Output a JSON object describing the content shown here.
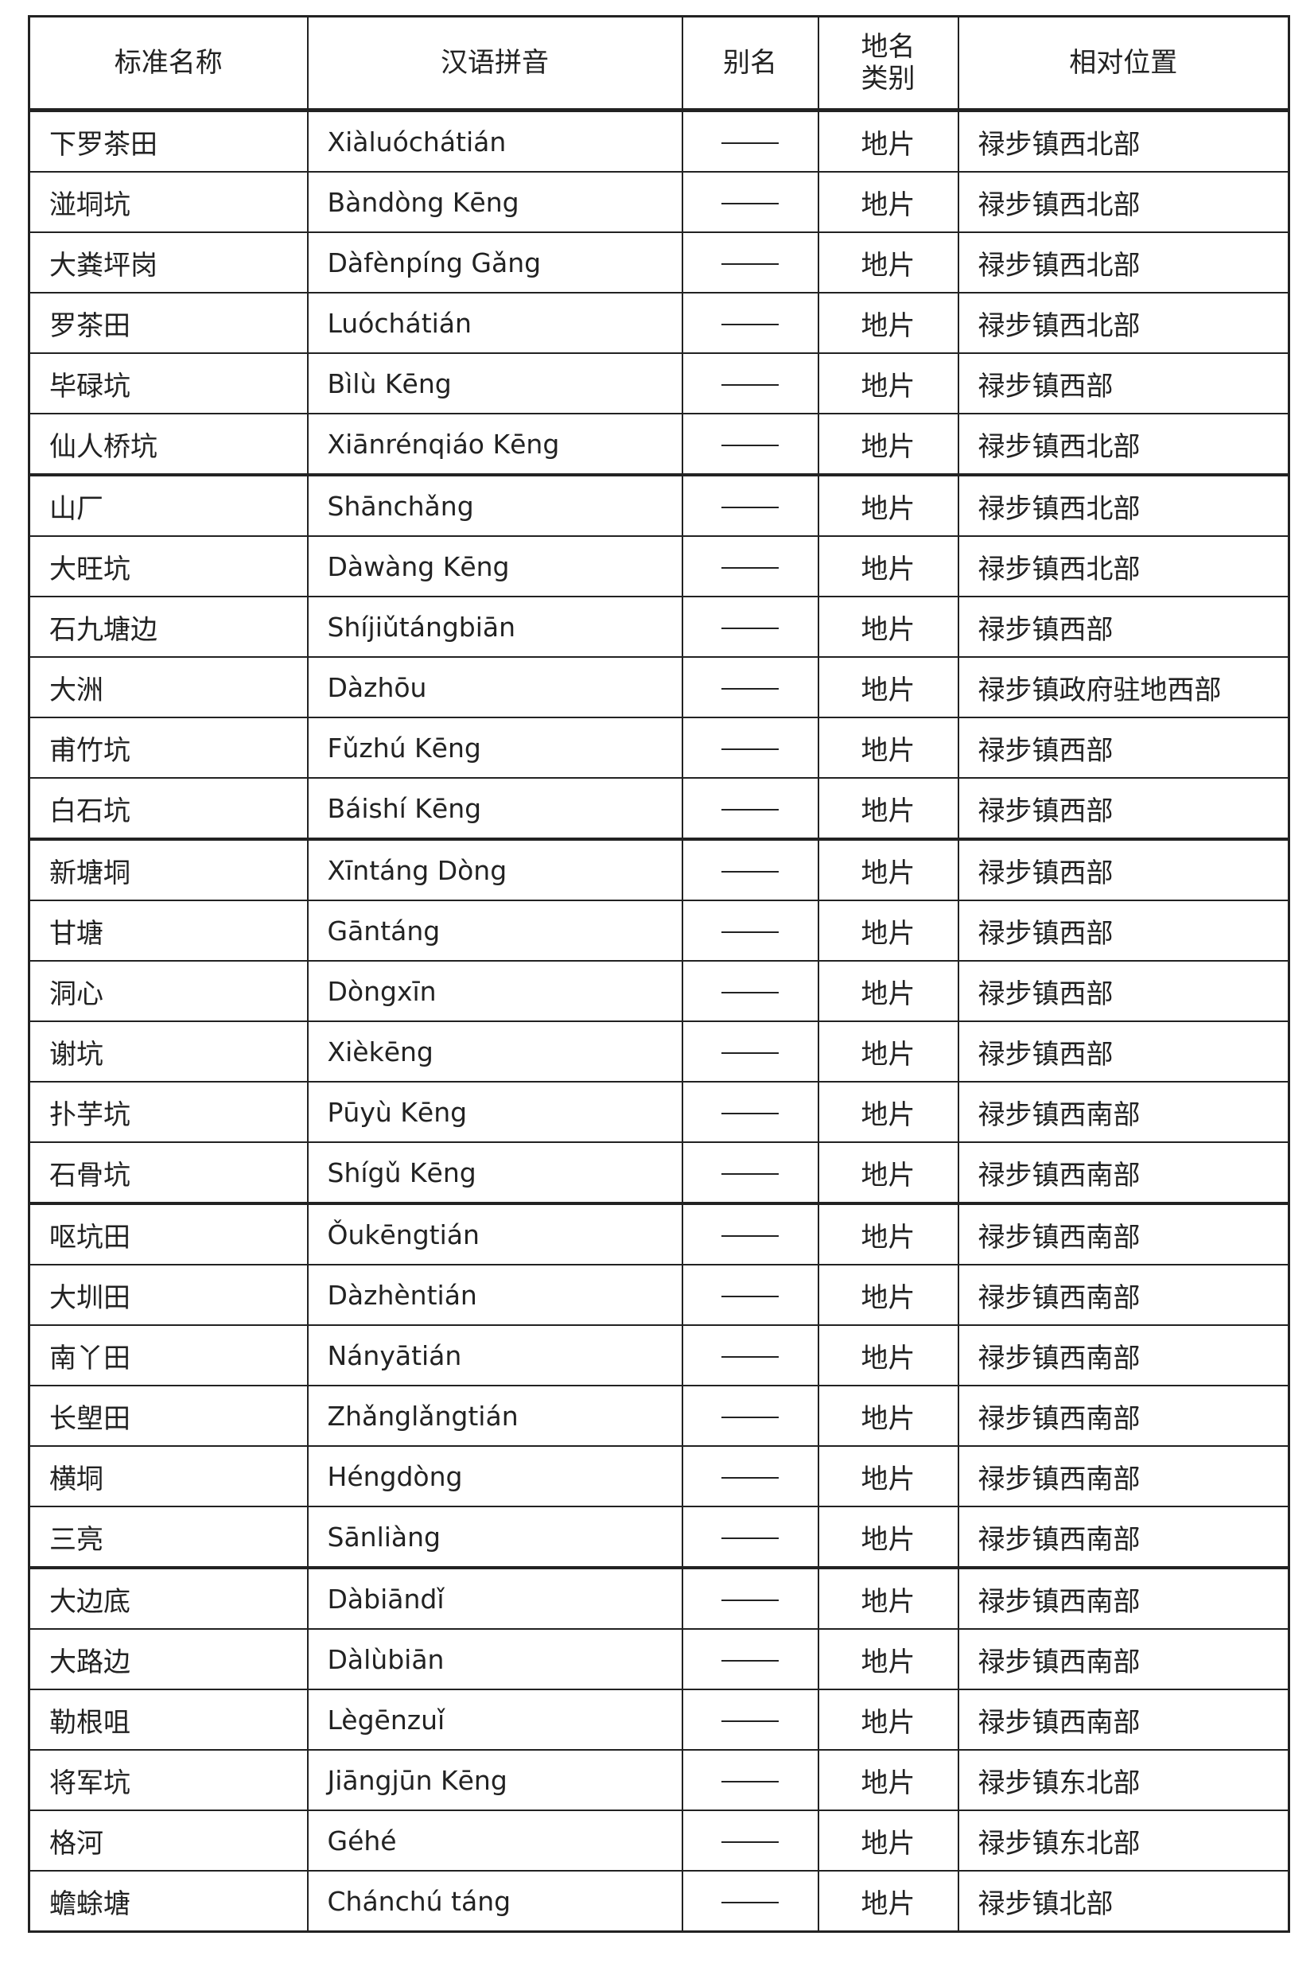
{
  "headers": {
    "name": "标准名称",
    "pinyin": "汉语拼音",
    "alias": "别名",
    "type": "地名类别",
    "location": "相对位置"
  },
  "rows": [
    {
      "name": "下罗茶田",
      "pinyin": "Xiàluóchátián",
      "alias": "——",
      "type": "地片",
      "location": "禄步镇西北部"
    },
    {
      "name": "湴垌坑",
      "pinyin": "Bàndòng Kēng",
      "alias": "——",
      "type": "地片",
      "location": "禄步镇西北部"
    },
    {
      "name": "大粪坪岗",
      "pinyin": "Dàfènpíng Gǎng",
      "alias": "——",
      "type": "地片",
      "location": "禄步镇西北部"
    },
    {
      "name": "罗茶田",
      "pinyin": "Luóchátián",
      "alias": "——",
      "type": "地片",
      "location": "禄步镇西北部"
    },
    {
      "name": "毕碌坑",
      "pinyin": "Bìlù Kēng",
      "alias": "——",
      "type": "地片",
      "location": "禄步镇西部"
    },
    {
      "name": "仙人桥坑",
      "pinyin": "Xiānrénqiáo Kēng",
      "alias": "——",
      "type": "地片",
      "location": "禄步镇西北部"
    },
    {
      "name": "山厂",
      "pinyin": "Shānchǎng",
      "alias": "——",
      "type": "地片",
      "location": "禄步镇西北部"
    },
    {
      "name": "大旺坑",
      "pinyin": "Dàwàng Kēng",
      "alias": "——",
      "type": "地片",
      "location": "禄步镇西北部"
    },
    {
      "name": "石九塘边",
      "pinyin": "Shíjiǔtángbiān",
      "alias": "——",
      "type": "地片",
      "location": "禄步镇西部"
    },
    {
      "name": "大洲",
      "pinyin": "Dàzhōu",
      "alias": "——",
      "type": "地片",
      "location": "禄步镇政府驻地西部"
    },
    {
      "name": "甫竹坑",
      "pinyin": "Fǔzhú Kēng",
      "alias": "——",
      "type": "地片",
      "location": "禄步镇西部"
    },
    {
      "name": "白石坑",
      "pinyin": "Báishí Kēng",
      "alias": "——",
      "type": "地片",
      "location": "禄步镇西部"
    },
    {
      "name": "新塘垌",
      "pinyin": "Xīntáng Dòng",
      "alias": "——",
      "type": "地片",
      "location": "禄步镇西部"
    },
    {
      "name": "甘塘",
      "pinyin": "Gāntáng",
      "alias": "——",
      "type": "地片",
      "location": "禄步镇西部"
    },
    {
      "name": "洞心",
      "pinyin": "Dòngxīn",
      "alias": "——",
      "type": "地片",
      "location": "禄步镇西部"
    },
    {
      "name": "谢坑",
      "pinyin": "Xièkēng",
      "alias": "——",
      "type": "地片",
      "location": "禄步镇西部"
    },
    {
      "name": "扑芋坑",
      "pinyin": "Pūyù Kēng",
      "alias": "——",
      "type": "地片",
      "location": "禄步镇西南部"
    },
    {
      "name": "石骨坑",
      "pinyin": "Shígǔ Kēng",
      "alias": "——",
      "type": "地片",
      "location": "禄步镇西南部"
    },
    {
      "name": "呕坑田",
      "pinyin": "Ǒukēngtián",
      "alias": "——",
      "type": "地片",
      "location": "禄步镇西南部"
    },
    {
      "name": "大圳田",
      "pinyin": "Dàzhèntián",
      "alias": "——",
      "type": "地片",
      "location": "禄步镇西南部"
    },
    {
      "name": "南丫田",
      "pinyin": "Nányātián",
      "alias": "——",
      "type": "地片",
      "location": "禄步镇西南部"
    },
    {
      "name": "长塱田",
      "pinyin": "Zhǎnglǎngtián",
      "alias": "——",
      "type": "地片",
      "location": "禄步镇西南部"
    },
    {
      "name": "横垌",
      "pinyin": "Héngdòng",
      "alias": "——",
      "type": "地片",
      "location": "禄步镇西南部"
    },
    {
      "name": "三亮",
      "pinyin": "Sānliàng",
      "alias": "——",
      "type": "地片",
      "location": "禄步镇西南部"
    },
    {
      "name": "大边底",
      "pinyin": "Dàbiāndǐ",
      "alias": "——",
      "type": "地片",
      "location": "禄步镇西南部"
    },
    {
      "name": "大路边",
      "pinyin": "Dàlùbiān",
      "alias": "——",
      "type": "地片",
      "location": "禄步镇西南部"
    },
    {
      "name": "勒根咀",
      "pinyin": "Lègēnzuǐ",
      "alias": "——",
      "type": "地片",
      "location": "禄步镇西南部"
    },
    {
      "name": "将军坑",
      "pinyin": "Jiāngjūn Kēng",
      "alias": "——",
      "type": "地片",
      "location": "禄步镇东北部"
    },
    {
      "name": "格河",
      "pinyin": "Géhé",
      "alias": "——",
      "type": "地片",
      "location": "禄步镇东北部"
    },
    {
      "name": "蟾蜍塘",
      "pinyin": "Chánchú táng",
      "alias": "——",
      "type": "地片",
      "location": "禄步镇北部"
    }
  ]
}
